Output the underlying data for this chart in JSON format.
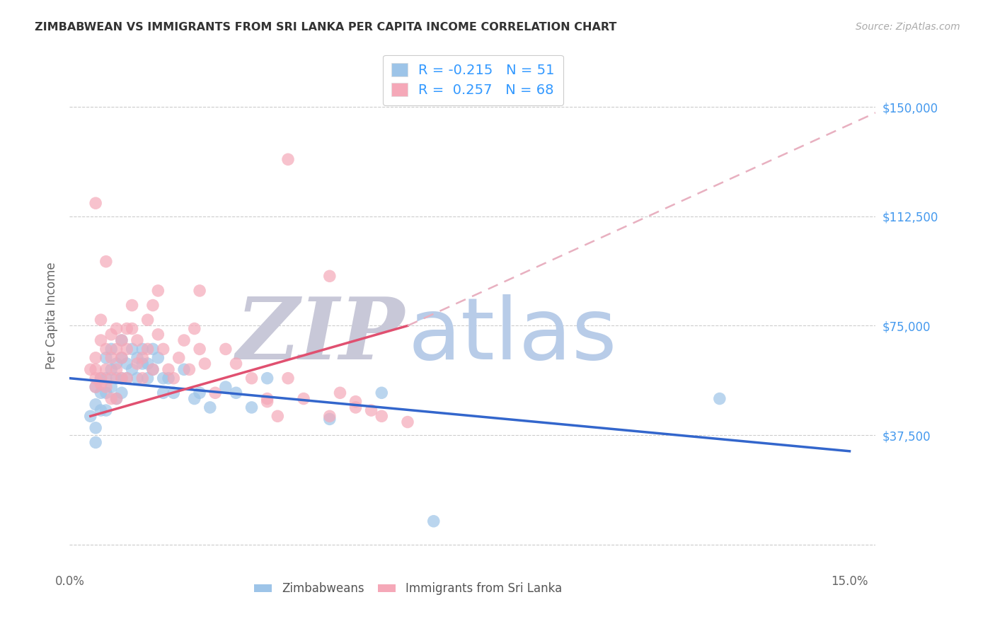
{
  "title": "ZIMBABWEAN VS IMMIGRANTS FROM SRI LANKA PER CAPITA INCOME CORRELATION CHART",
  "source": "Source: ZipAtlas.com",
  "ylabel": "Per Capita Income",
  "xlim": [
    0.0,
    0.155
  ],
  "ylim": [
    -8000,
    165000
  ],
  "blue_color": "#9dc4e8",
  "pink_color": "#f5a8b8",
  "blue_line_color": "#3366cc",
  "pink_line_color": "#e05070",
  "pink_dash_color": "#e8b0c0",
  "blue_R": "-0.215",
  "blue_N": "51",
  "pink_R": "0.257",
  "pink_N": "68",
  "watermark_zip": "ZIP",
  "watermark_atlas": "atlas",
  "watermark_zip_color": "#c8c8d8",
  "watermark_atlas_color": "#b8cce8",
  "ytick_values": [
    0,
    37500,
    75000,
    112500,
    150000
  ],
  "ytick_labels": [
    "",
    "$37,500",
    "$75,000",
    "$112,500",
    "$150,000"
  ],
  "grid_color": "#cccccc",
  "title_color": "#333333",
  "axis_label_color": "#666666",
  "yticklabel_color": "#4499ee",
  "blue_line_x0": 0.0,
  "blue_line_y0": 57000,
  "blue_line_x1": 0.15,
  "blue_line_y1": 32000,
  "pink_line_x0": 0.004,
  "pink_line_y0": 44000,
  "pink_line_xsolid": 0.065,
  "pink_line_ysolid": 75000,
  "pink_line_x1": 0.155,
  "pink_line_y1": 148000,
  "blue_points_x": [
    0.004,
    0.005,
    0.005,
    0.005,
    0.005,
    0.006,
    0.006,
    0.006,
    0.007,
    0.007,
    0.007,
    0.007,
    0.008,
    0.008,
    0.008,
    0.009,
    0.009,
    0.009,
    0.01,
    0.01,
    0.01,
    0.01,
    0.011,
    0.011,
    0.012,
    0.012,
    0.013,
    0.013,
    0.014,
    0.014,
    0.015,
    0.015,
    0.016,
    0.016,
    0.017,
    0.018,
    0.018,
    0.019,
    0.02,
    0.022,
    0.024,
    0.025,
    0.027,
    0.03,
    0.032,
    0.035,
    0.038,
    0.05,
    0.06,
    0.125,
    0.07
  ],
  "blue_points_y": [
    44000,
    54000,
    48000,
    40000,
    35000,
    57000,
    52000,
    46000,
    64000,
    57000,
    52000,
    46000,
    67000,
    60000,
    54000,
    62000,
    57000,
    50000,
    70000,
    64000,
    57000,
    52000,
    62000,
    57000,
    67000,
    60000,
    64000,
    57000,
    67000,
    62000,
    62000,
    57000,
    67000,
    60000,
    64000,
    52000,
    57000,
    57000,
    52000,
    60000,
    50000,
    52000,
    47000,
    54000,
    52000,
    47000,
    57000,
    43000,
    52000,
    50000,
    8000
  ],
  "pink_points_x": [
    0.004,
    0.005,
    0.005,
    0.005,
    0.005,
    0.006,
    0.006,
    0.006,
    0.007,
    0.007,
    0.007,
    0.008,
    0.008,
    0.008,
    0.008,
    0.009,
    0.009,
    0.009,
    0.009,
    0.01,
    0.01,
    0.01,
    0.011,
    0.011,
    0.011,
    0.012,
    0.012,
    0.013,
    0.013,
    0.014,
    0.014,
    0.015,
    0.015,
    0.016,
    0.016,
    0.017,
    0.017,
    0.018,
    0.019,
    0.02,
    0.021,
    0.022,
    0.023,
    0.024,
    0.025,
    0.026,
    0.028,
    0.03,
    0.032,
    0.035,
    0.038,
    0.04,
    0.042,
    0.045,
    0.05,
    0.052,
    0.055,
    0.058,
    0.06,
    0.065,
    0.007,
    0.025,
    0.038,
    0.042,
    0.05,
    0.055,
    0.005,
    0.006
  ],
  "pink_points_y": [
    60000,
    64000,
    57000,
    117000,
    54000,
    77000,
    70000,
    57000,
    60000,
    67000,
    54000,
    72000,
    64000,
    57000,
    50000,
    67000,
    74000,
    60000,
    50000,
    64000,
    57000,
    70000,
    74000,
    67000,
    57000,
    82000,
    74000,
    70000,
    62000,
    64000,
    57000,
    77000,
    67000,
    82000,
    60000,
    87000,
    72000,
    67000,
    60000,
    57000,
    64000,
    70000,
    60000,
    74000,
    67000,
    62000,
    52000,
    67000,
    62000,
    57000,
    50000,
    44000,
    57000,
    50000,
    44000,
    52000,
    49000,
    46000,
    44000,
    42000,
    97000,
    87000,
    49000,
    132000,
    92000,
    47000,
    60000,
    55000
  ]
}
